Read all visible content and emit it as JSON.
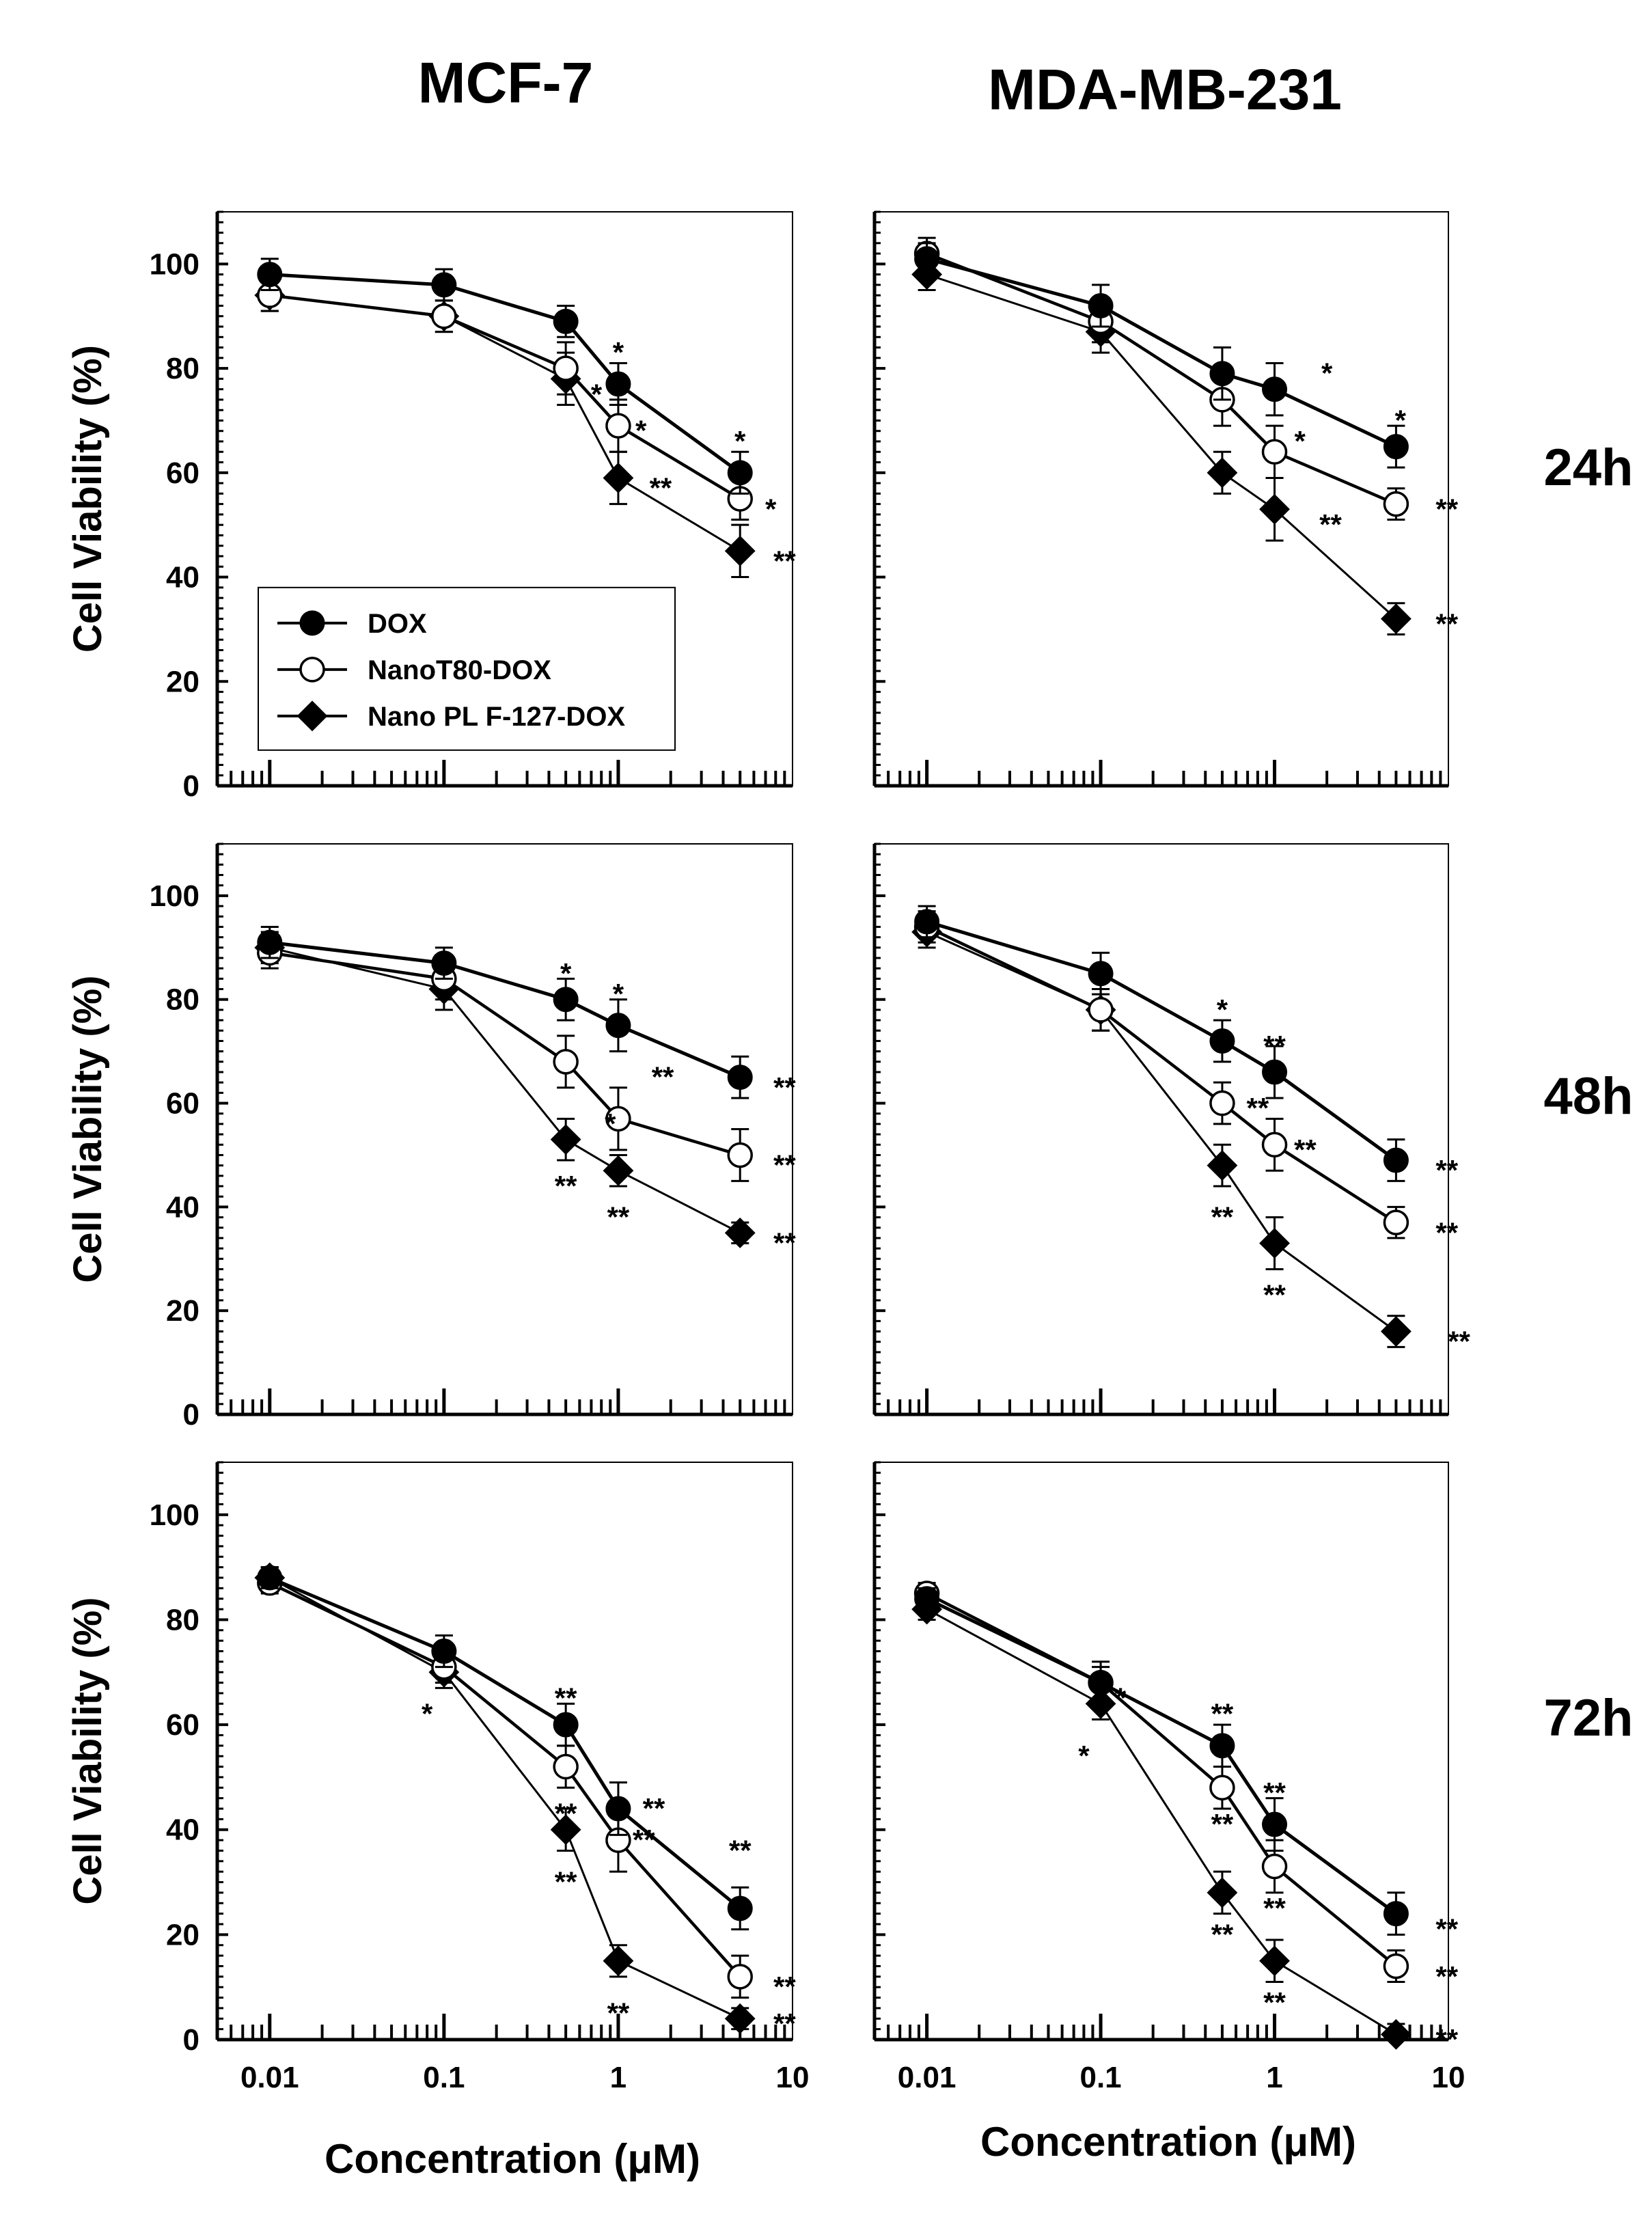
{
  "chart_data": {
    "type": "line",
    "column_titles": [
      "MCF-7",
      "MDA-MB-231"
    ],
    "row_labels": [
      "24h",
      "48h",
      "72h"
    ],
    "ylabel": "Cell Viability (%)",
    "xlabel": "Concentration (μM)",
    "xscale": "log",
    "xlim": [
      0.005,
      10
    ],
    "ylim": [
      0,
      110
    ],
    "yticks": [
      0,
      20,
      40,
      60,
      80,
      100
    ],
    "ytick_labels": [
      "0",
      "20",
      "40",
      "60",
      "80",
      "100"
    ],
    "xticks": [
      0.01,
      0.1,
      1,
      10
    ],
    "xtick_labels": [
      "0.01",
      "0.1",
      "1",
      "10"
    ],
    "legend": {
      "placement": "lower-left",
      "entries": [
        {
          "name": "DOX",
          "marker": "filled-circle"
        },
        {
          "name": "NanoT80-DOX",
          "marker": "open-circle"
        },
        {
          "name": "Nano PL F-127-DOX",
          "marker": "filled-diamond"
        }
      ]
    },
    "panels": [
      {
        "id": "mcf7-24h",
        "row": 0,
        "col": 0,
        "show_yticks": true,
        "show_xtick_labels": false,
        "show_legend": true,
        "x": [
          0.01,
          0.1,
          0.5,
          1,
          5
        ],
        "series": [
          {
            "name": "DOX",
            "values": [
              98,
              96,
              89,
              77,
              60
            ],
            "errors": [
              3,
              3,
              3,
              4,
              4
            ]
          },
          {
            "name": "NanoT80-DOX",
            "values": [
              94,
              90,
              80,
              69,
              55
            ],
            "errors": [
              3,
              3,
              5,
              5,
              4
            ]
          },
          {
            "name": "Nano PL F-127-DOX",
            "values": [
              94,
              90,
              78,
              59,
              45
            ],
            "errors": [
              3,
              3,
              5,
              5,
              5
            ]
          }
        ],
        "annotations": [
          {
            "text": "*",
            "x": 1,
            "y": 83
          },
          {
            "text": "*",
            "x": 0.75,
            "y": 75
          },
          {
            "text": "*",
            "x": 1.35,
            "y": 68
          },
          {
            "text": "**",
            "x": 1.75,
            "y": 57
          },
          {
            "text": "*",
            "x": 5,
            "y": 66
          },
          {
            "text": "*",
            "x": 7.5,
            "y": 53
          },
          {
            "text": "**",
            "x": 9,
            "y": 43
          }
        ]
      },
      {
        "id": "mda-24h",
        "row": 0,
        "col": 1,
        "show_yticks": false,
        "show_xtick_labels": false,
        "show_legend": false,
        "x": [
          0.01,
          0.1,
          0.5,
          1,
          5
        ],
        "series": [
          {
            "name": "DOX",
            "values": [
              101,
              92,
              79,
              76,
              65
            ],
            "errors": [
              3,
              4,
              5,
              5,
              4
            ]
          },
          {
            "name": "NanoT80-DOX",
            "values": [
              102,
              89,
              74,
              64,
              54
            ],
            "errors": [
              3,
              4,
              5,
              5,
              3
            ]
          },
          {
            "name": "Nano PL F-127-DOX",
            "values": [
              98,
              87,
              60,
              53,
              32
            ],
            "errors": [
              3,
              4,
              4,
              6,
              3
            ]
          }
        ],
        "annotations": [
          {
            "text": "*",
            "x": 2.0,
            "y": 79
          },
          {
            "text": "*",
            "x": 5.3,
            "y": 70
          },
          {
            "text": "*",
            "x": 1.4,
            "y": 66
          },
          {
            "text": "**",
            "x": 2.1,
            "y": 50
          },
          {
            "text": "**",
            "x": 9.8,
            "y": 53
          },
          {
            "text": "**",
            "x": 9.8,
            "y": 31
          }
        ]
      },
      {
        "id": "mcf7-48h",
        "row": 1,
        "col": 0,
        "show_yticks": true,
        "show_xtick_labels": false,
        "show_legend": false,
        "x": [
          0.01,
          0.1,
          0.5,
          1,
          5
        ],
        "series": [
          {
            "name": "DOX",
            "values": [
              91,
              87,
              80,
              75,
              65
            ],
            "errors": [
              3,
              3,
              4,
              5,
              4
            ]
          },
          {
            "name": "NanoT80-DOX",
            "values": [
              89,
              84,
              68,
              57,
              50
            ],
            "errors": [
              3,
              4,
              5,
              6,
              5
            ]
          },
          {
            "name": "Nano PL F-127-DOX",
            "values": [
              90,
              82,
              53,
              47,
              35
            ],
            "errors": [
              3,
              4,
              4,
              3,
              2
            ]
          }
        ],
        "annotations": [
          {
            "text": "*",
            "x": 0.5,
            "y": 85
          },
          {
            "text": "*",
            "x": 1,
            "y": 81
          },
          {
            "text": "**",
            "x": 1.8,
            "y": 65
          },
          {
            "text": "*",
            "x": 0.9,
            "y": 56
          },
          {
            "text": "**",
            "x": 0.5,
            "y": 44
          },
          {
            "text": "**",
            "x": 1,
            "y": 38
          },
          {
            "text": "**",
            "x": 9,
            "y": 63
          },
          {
            "text": "**",
            "x": 9,
            "y": 48
          },
          {
            "text": "**",
            "x": 9,
            "y": 33
          }
        ]
      },
      {
        "id": "mda-48h",
        "row": 1,
        "col": 1,
        "show_yticks": false,
        "show_xtick_labels": false,
        "show_legend": false,
        "x": [
          0.01,
          0.1,
          0.5,
          1,
          5
        ],
        "series": [
          {
            "name": "DOX",
            "values": [
              95,
              85,
              72,
              66,
              49
            ],
            "errors": [
              3,
              4,
              4,
              5,
              4
            ]
          },
          {
            "name": "NanoT80-DOX",
            "values": [
              94,
              78,
              60,
              52,
              37
            ],
            "errors": [
              3,
              4,
              4,
              5,
              3
            ]
          },
          {
            "name": "Nano PL F-127-DOX",
            "values": [
              93,
              78,
              48,
              33,
              16
            ],
            "errors": [
              3,
              4,
              4,
              5,
              3
            ]
          }
        ],
        "annotations": [
          {
            "text": "*",
            "x": 0.5,
            "y": 78
          },
          {
            "text": "**",
            "x": 1,
            "y": 71
          },
          {
            "text": "**",
            "x": 0.8,
            "y": 59
          },
          {
            "text": "**",
            "x": 1.5,
            "y": 51
          },
          {
            "text": "**",
            "x": 0.5,
            "y": 38
          },
          {
            "text": "**",
            "x": 1,
            "y": 23
          },
          {
            "text": "**",
            "x": 9.8,
            "y": 47
          },
          {
            "text": "**",
            "x": 9.8,
            "y": 35
          },
          {
            "text": "**",
            "x": 11.5,
            "y": 14
          }
        ]
      },
      {
        "id": "mcf7-72h",
        "row": 2,
        "col": 0,
        "show_yticks": true,
        "show_xtick_labels": true,
        "show_legend": false,
        "x": [
          0.01,
          0.1,
          0.5,
          1,
          5
        ],
        "series": [
          {
            "name": "DOX",
            "values": [
              88,
              74,
              60,
              44,
              25
            ],
            "errors": [
              2,
              3,
              4,
              5,
              4
            ]
          },
          {
            "name": "NanoT80-DOX",
            "values": [
              87,
              71,
              52,
              38,
              12
            ],
            "errors": [
              2,
              3,
              4,
              6,
              4
            ]
          },
          {
            "name": "Nano PL F-127-DOX",
            "values": [
              88,
              70,
              40,
              15,
              4
            ],
            "errors": [
              2,
              3,
              4,
              3,
              2
            ]
          }
        ],
        "annotations": [
          {
            "text": "*",
            "x": 0.08,
            "y": 62
          },
          {
            "text": "**",
            "x": 0.5,
            "y": 65
          },
          {
            "text": "**",
            "x": 0.5,
            "y": 43
          },
          {
            "text": "**",
            "x": 0.5,
            "y": 30
          },
          {
            "text": "**",
            "x": 1.6,
            "y": 44
          },
          {
            "text": "**",
            "x": 1.4,
            "y": 38
          },
          {
            "text": "**",
            "x": 1,
            "y": 5
          },
          {
            "text": "**",
            "x": 5,
            "y": 36
          },
          {
            "text": "**",
            "x": 9,
            "y": 10
          },
          {
            "text": "**",
            "x": 9,
            "y": 3
          }
        ]
      },
      {
        "id": "mda-72h",
        "row": 2,
        "col": 1,
        "show_yticks": false,
        "show_xtick_labels": true,
        "show_legend": false,
        "x": [
          0.01,
          0.1,
          0.5,
          1,
          5
        ],
        "series": [
          {
            "name": "DOX",
            "values": [
              84,
              68,
              56,
              41,
              24
            ],
            "errors": [
              2,
              3,
              4,
              5,
              4
            ]
          },
          {
            "name": "NanoT80-DOX",
            "values": [
              85,
              68,
              48,
              33,
              14
            ],
            "errors": [
              2,
              4,
              4,
              5,
              3
            ]
          },
          {
            "name": "Nano PL F-127-DOX",
            "values": [
              82,
              64,
              28,
              15,
              1
            ],
            "errors": [
              2,
              3,
              4,
              4,
              2
            ]
          }
        ],
        "annotations": [
          {
            "text": "*",
            "x": 0.13,
            "y": 65
          },
          {
            "text": "*",
            "x": 0.08,
            "y": 54
          },
          {
            "text": "**",
            "x": 0.5,
            "y": 62
          },
          {
            "text": "**",
            "x": 0.5,
            "y": 41
          },
          {
            "text": "**",
            "x": 0.5,
            "y": 20
          },
          {
            "text": "**",
            "x": 1,
            "y": 47
          },
          {
            "text": "**",
            "x": 1,
            "y": 25
          },
          {
            "text": "**",
            "x": 1,
            "y": 7
          },
          {
            "text": "**",
            "x": 9.8,
            "y": 21
          },
          {
            "text": "**",
            "x": 9.8,
            "y": 12
          },
          {
            "text": "**",
            "x": 9.8,
            "y": 0
          }
        ]
      }
    ]
  }
}
